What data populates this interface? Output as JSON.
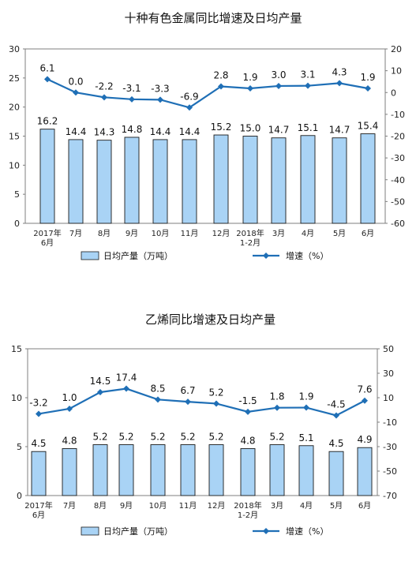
{
  "chart_data": [
    {
      "type": "bar+line",
      "title": "十种有色金属同比增速及日均产量",
      "categories": [
        [
          "2017年",
          "6月"
        ],
        [
          "7月"
        ],
        [
          "8月"
        ],
        [
          "9月"
        ],
        [
          "10月"
        ],
        [
          "11月"
        ],
        [
          "12月"
        ],
        [
          "2018年",
          "1-2月"
        ],
        [
          "3月"
        ],
        [
          "4月"
        ],
        [
          "5月"
        ],
        [
          "6月"
        ]
      ],
      "series": [
        {
          "name": "日均产量（万吨）",
          "type": "bar",
          "axis": "left",
          "values": [
            16.2,
            14.4,
            14.3,
            14.8,
            14.4,
            14.4,
            15.2,
            15.0,
            14.7,
            15.1,
            14.7,
            15.4
          ],
          "labels": [
            "16.2",
            "14.4",
            "14.3",
            "14.8",
            "14.4",
            "14.4",
            "15.2",
            "15.0",
            "14.7",
            "15.1",
            "14.7",
            "15.4"
          ]
        },
        {
          "name": "增速（%）",
          "type": "line",
          "axis": "right",
          "values": [
            6.1,
            0.0,
            -2.2,
            -3.1,
            -3.3,
            -6.9,
            2.8,
            1.9,
            3.0,
            3.1,
            4.3,
            1.9
          ],
          "labels": [
            "6.1",
            "0.0",
            "-2.2",
            "-3.1",
            "-3.3",
            "-6.9",
            "2.8",
            "1.9",
            "3.0",
            "3.1",
            "4.3",
            "1.9"
          ]
        }
      ],
      "left_axis": {
        "min": 0,
        "max": 30,
        "ticks": [
          "0",
          "5",
          "10",
          "15",
          "20",
          "25",
          "30"
        ]
      },
      "right_axis": {
        "min": -60,
        "max": 20,
        "ticks": [
          "-60",
          "-50",
          "-40",
          "-30",
          "-20",
          "-10",
          "0",
          "10",
          "20"
        ]
      },
      "legend_position": "bottom",
      "bar_color": "#a9d3f5",
      "line_color": "#1f6fb6"
    },
    {
      "type": "bar+line",
      "title": "乙烯同比增速及日均产量",
      "categories": [
        [
          "2017年",
          "6月"
        ],
        [
          "7月"
        ],
        [
          "8月"
        ],
        [
          "9月"
        ],
        [
          "10月"
        ],
        [
          "11月"
        ],
        [
          "12月"
        ],
        [
          "2018年",
          "1-2月"
        ],
        [
          "3月"
        ],
        [
          "4月"
        ],
        [
          "5月"
        ],
        [
          "6月"
        ]
      ],
      "series": [
        {
          "name": "日均产量（万吨）",
          "type": "bar",
          "axis": "left",
          "values": [
            4.5,
            4.8,
            5.2,
            5.2,
            5.2,
            5.2,
            5.2,
            4.8,
            5.2,
            5.1,
            4.5,
            4.9
          ],
          "labels": [
            "4.5",
            "4.8",
            "5.2",
            "5.2",
            "5.2",
            "5.2",
            "5.2",
            "4.8",
            "5.2",
            "5.1",
            "4.5",
            "4.9"
          ]
        },
        {
          "name": "增速（%）",
          "type": "line",
          "axis": "right",
          "values": [
            -3.2,
            1.0,
            14.5,
            17.4,
            8.5,
            6.7,
            5.2,
            -1.5,
            1.8,
            1.9,
            -4.5,
            7.6
          ],
          "labels": [
            "-3.2",
            "1.0",
            "14.5",
            "17.4",
            "8.5",
            "6.7",
            "5.2",
            "-1.5",
            "1.8",
            "1.9",
            "-4.5",
            "7.6"
          ]
        }
      ],
      "left_axis": {
        "min": 0,
        "max": 15,
        "ticks": [
          "0",
          "5",
          "10",
          "15"
        ]
      },
      "right_axis": {
        "min": -70,
        "max": 50,
        "ticks": [
          "-70",
          "-50",
          "-30",
          "-10",
          "10",
          "30",
          "50"
        ]
      },
      "legend_position": "bottom",
      "bar_color": "#a9d3f5",
      "line_color": "#1f6fb6"
    }
  ]
}
